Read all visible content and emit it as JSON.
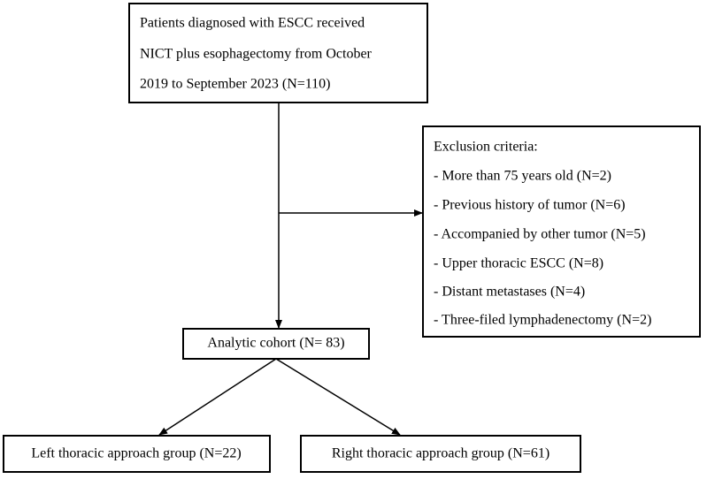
{
  "nodes": [
    {
      "lines": [
        "Patients diagnosed with ESCC received",
        "NICT plus esophagectomy from October",
        "2019 to September 2023  (N=110)"
      ]
    },
    {
      "title": "Exclusion criteria:",
      "items": [
        "- More than 75 years old (N=2)",
        "- Previous history of tumor (N=6)",
        "- Accompanied by other tumor (N=5)",
        "- Upper thoracic ESCC  (N=8)",
        "- Distant metastases (N=4)",
        "- Three-filed lymphadenectomy (N=2)"
      ]
    },
    {
      "label": "Analytic cohort (N= 83)"
    },
    {
      "label": "Left thoracic approach group (N=22)"
    },
    {
      "label": "Right thoracic approach group (N=61)"
    }
  ]
}
